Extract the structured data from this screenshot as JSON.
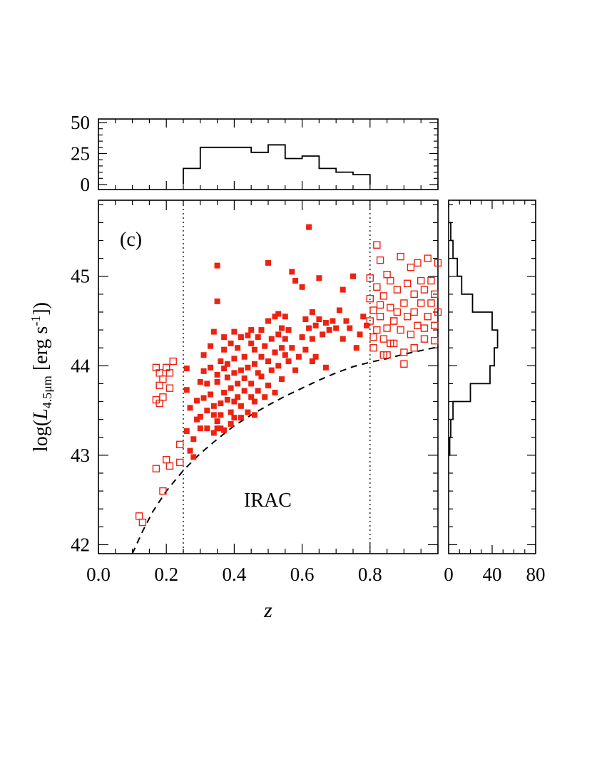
{
  "chart_data": {
    "type": "scatter",
    "panel_label": "(c)",
    "annotation": "IRAC",
    "xlabel": "z",
    "ylabel": {
      "pre": "log(",
      "L": "L",
      "sub": "4.5μm",
      "unit_pre": " [erg s",
      "sup": "-1",
      "unit_post": "])"
    },
    "xlim": [
      0.0,
      1.0
    ],
    "ylim": [
      41.9,
      45.85
    ],
    "x_ticks": [
      "0.0",
      "0.2",
      "0.4",
      "0.6",
      "0.8"
    ],
    "x_tick_values": [
      0.0,
      0.2,
      0.4,
      0.6,
      0.8
    ],
    "y_ticks": [
      "42",
      "43",
      "44",
      "45"
    ],
    "y_tick_values": [
      42,
      43,
      44,
      45
    ],
    "marker_color": "#ee2211",
    "vertical_lines_z": [
      0.25,
      0.8
    ],
    "limit_curve": {
      "style": "dashed",
      "z": [
        0.1,
        0.13,
        0.16,
        0.2,
        0.25,
        0.3,
        0.35,
        0.4,
        0.45,
        0.5,
        0.55,
        0.6,
        0.65,
        0.7,
        0.75,
        0.8,
        0.85,
        0.9,
        0.95,
        1.0
      ],
      "logL": [
        41.9,
        42.15,
        42.37,
        42.6,
        42.83,
        43.02,
        43.18,
        43.33,
        43.45,
        43.56,
        43.66,
        43.75,
        43.84,
        43.92,
        43.99,
        44.04,
        44.08,
        44.13,
        44.17,
        44.21
      ]
    },
    "series": [
      {
        "marker": "filled-square",
        "points": [
          [
            0.26,
            43.97
          ],
          [
            0.26,
            43.73
          ],
          [
            0.27,
            43.53
          ],
          [
            0.26,
            43.27
          ],
          [
            0.27,
            43.05
          ],
          [
            0.28,
            42.98
          ],
          [
            0.28,
            43.18
          ],
          [
            0.29,
            43.4
          ],
          [
            0.29,
            43.61
          ],
          [
            0.3,
            43.82
          ],
          [
            0.3,
            43.43
          ],
          [
            0.31,
            44.12
          ],
          [
            0.31,
            43.94
          ],
          [
            0.31,
            43.64
          ],
          [
            0.32,
            43.5
          ],
          [
            0.32,
            43.3
          ],
          [
            0.32,
            43.8
          ],
          [
            0.33,
            43.98
          ],
          [
            0.33,
            44.22
          ],
          [
            0.33,
            43.68
          ],
          [
            0.34,
            43.45
          ],
          [
            0.34,
            43.25
          ],
          [
            0.34,
            44.38
          ],
          [
            0.34,
            43.55
          ],
          [
            0.35,
            45.12
          ],
          [
            0.35,
            44.72
          ],
          [
            0.35,
            43.9
          ],
          [
            0.35,
            43.38
          ],
          [
            0.35,
            43.82
          ],
          [
            0.36,
            43.3
          ],
          [
            0.36,
            44.05
          ],
          [
            0.36,
            43.58
          ],
          [
            0.36,
            43.45
          ],
          [
            0.37,
            43.97
          ],
          [
            0.37,
            44.18
          ],
          [
            0.37,
            43.7
          ],
          [
            0.37,
            43.28
          ],
          [
            0.37,
            44.32
          ],
          [
            0.38,
            43.87
          ],
          [
            0.38,
            44.02
          ],
          [
            0.38,
            43.62
          ],
          [
            0.39,
            43.48
          ],
          [
            0.39,
            43.75
          ],
          [
            0.39,
            44.25
          ],
          [
            0.39,
            43.35
          ],
          [
            0.4,
            43.92
          ],
          [
            0.4,
            43.6
          ],
          [
            0.4,
            44.08
          ],
          [
            0.4,
            44.38
          ],
          [
            0.41,
            43.8
          ],
          [
            0.41,
            43.65
          ],
          [
            0.41,
            44.2
          ],
          [
            0.42,
            43.55
          ],
          [
            0.42,
            43.95
          ],
          [
            0.42,
            43.42
          ],
          [
            0.42,
            44.32
          ],
          [
            0.43,
            43.72
          ],
          [
            0.43,
            44.1
          ],
          [
            0.43,
            43.86
          ],
          [
            0.44,
            44.34
          ],
          [
            0.44,
            43.48
          ],
          [
            0.44,
            43.98
          ],
          [
            0.45,
            43.65
          ],
          [
            0.45,
            44.25
          ],
          [
            0.45,
            43.8
          ],
          [
            0.45,
            44.4
          ],
          [
            0.46,
            44.02
          ],
          [
            0.46,
            43.6
          ],
          [
            0.46,
            44.18
          ],
          [
            0.47,
            43.92
          ],
          [
            0.47,
            44.32
          ],
          [
            0.47,
            43.72
          ],
          [
            0.48,
            44.4
          ],
          [
            0.48,
            44.1
          ],
          [
            0.48,
            43.88
          ],
          [
            0.49,
            44.22
          ],
          [
            0.49,
            43.65
          ],
          [
            0.5,
            45.15
          ],
          [
            0.5,
            44.05
          ],
          [
            0.5,
            44.5
          ],
          [
            0.5,
            43.78
          ],
          [
            0.51,
            44.3
          ],
          [
            0.51,
            43.95
          ],
          [
            0.52,
            44.15
          ],
          [
            0.52,
            44.55
          ],
          [
            0.52,
            43.7
          ],
          [
            0.53,
            44.0
          ],
          [
            0.53,
            44.35
          ],
          [
            0.53,
            44.58
          ],
          [
            0.54,
            44.2
          ],
          [
            0.54,
            43.85
          ],
          [
            0.54,
            44.42
          ],
          [
            0.55,
            44.12
          ],
          [
            0.55,
            44.55
          ],
          [
            0.55,
            44.3
          ],
          [
            0.56,
            44.05
          ],
          [
            0.56,
            44.4
          ],
          [
            0.57,
            45.05
          ],
          [
            0.57,
            44.2
          ],
          [
            0.58,
            44.95
          ],
          [
            0.58,
            43.95
          ],
          [
            0.59,
            44.1
          ],
          [
            0.6,
            44.32
          ],
          [
            0.6,
            44.88
          ],
          [
            0.61,
            44.52
          ],
          [
            0.61,
            44.18
          ],
          [
            0.62,
            45.55
          ],
          [
            0.62,
            44.42
          ],
          [
            0.63,
            44.6
          ],
          [
            0.63,
            44.3
          ],
          [
            0.64,
            44.45
          ],
          [
            0.64,
            44.1
          ],
          [
            0.65,
            44.98
          ],
          [
            0.65,
            44.52
          ],
          [
            0.66,
            44.35
          ],
          [
            0.67,
            44.48
          ],
          [
            0.68,
            44.4
          ],
          [
            0.69,
            44.5
          ],
          [
            0.7,
            44.42
          ],
          [
            0.71,
            44.62
          ],
          [
            0.72,
            44.3
          ],
          [
            0.72,
            44.85
          ],
          [
            0.73,
            44.5
          ],
          [
            0.74,
            44.42
          ],
          [
            0.75,
            45.0
          ],
          [
            0.76,
            44.2
          ],
          [
            0.77,
            44.35
          ],
          [
            0.78,
            44.55
          ],
          [
            0.79,
            44.45
          ],
          [
            0.46,
            43.45
          ],
          [
            0.4,
            43.42
          ],
          [
            0.35,
            43.3
          ],
          [
            0.3,
            43.3
          ],
          [
            0.63,
            44.05
          ],
          [
            0.67,
            43.98
          ]
        ]
      },
      {
        "marker": "open-square",
        "points": [
          [
            0.12,
            42.32
          ],
          [
            0.13,
            42.25
          ],
          [
            0.17,
            42.85
          ],
          [
            0.17,
            43.62
          ],
          [
            0.17,
            43.98
          ],
          [
            0.18,
            43.78
          ],
          [
            0.18,
            43.58
          ],
          [
            0.18,
            43.92
          ],
          [
            0.19,
            43.65
          ],
          [
            0.19,
            43.85
          ],
          [
            0.19,
            42.6
          ],
          [
            0.2,
            42.95
          ],
          [
            0.2,
            43.98
          ],
          [
            0.21,
            42.88
          ],
          [
            0.21,
            43.92
          ],
          [
            0.21,
            43.75
          ],
          [
            0.22,
            44.05
          ],
          [
            0.24,
            43.12
          ],
          [
            0.24,
            42.92
          ],
          [
            0.8,
            44.75
          ],
          [
            0.8,
            44.5
          ],
          [
            0.8,
            44.98
          ],
          [
            0.81,
            44.2
          ],
          [
            0.81,
            44.62
          ],
          [
            0.82,
            44.88
          ],
          [
            0.82,
            45.35
          ],
          [
            0.82,
            44.4
          ],
          [
            0.83,
            45.18
          ],
          [
            0.83,
            44.55
          ],
          [
            0.84,
            44.3
          ],
          [
            0.84,
            44.78
          ],
          [
            0.85,
            45.02
          ],
          [
            0.85,
            44.42
          ],
          [
            0.85,
            44.12
          ],
          [
            0.86,
            44.65
          ],
          [
            0.86,
            44.95
          ],
          [
            0.87,
            44.5
          ],
          [
            0.87,
            44.25
          ],
          [
            0.88,
            44.85
          ],
          [
            0.88,
            44.6
          ],
          [
            0.89,
            45.22
          ],
          [
            0.89,
            44.4
          ],
          [
            0.9,
            44.7
          ],
          [
            0.9,
            44.15
          ],
          [
            0.91,
            44.92
          ],
          [
            0.91,
            44.55
          ],
          [
            0.92,
            45.1
          ],
          [
            0.92,
            44.35
          ],
          [
            0.93,
            44.8
          ],
          [
            0.93,
            44.6
          ],
          [
            0.94,
            45.15
          ],
          [
            0.94,
            44.45
          ],
          [
            0.95,
            44.7
          ],
          [
            0.95,
            44.95
          ],
          [
            0.96,
            44.3
          ],
          [
            0.96,
            44.85
          ],
          [
            0.97,
            45.2
          ],
          [
            0.97,
            44.55
          ],
          [
            0.98,
            44.7
          ],
          [
            0.98,
            44.95
          ],
          [
            0.99,
            44.45
          ],
          [
            0.99,
            44.8
          ],
          [
            1.0,
            45.15
          ],
          [
            1.0,
            44.6
          ],
          [
            0.84,
            44.12
          ],
          [
            0.81,
            44.32
          ],
          [
            0.86,
            44.25
          ],
          [
            0.9,
            44.02
          ],
          [
            0.93,
            44.2
          ],
          [
            0.96,
            44.42
          ],
          [
            0.99,
            44.28
          ],
          [
            0.87,
            44.5
          ],
          [
            0.83,
            44.68
          ]
        ]
      }
    ],
    "top_histogram": {
      "type": "histogram",
      "ylim": [
        0,
        50
      ],
      "y_ticks": [
        "50",
        "25",
        "0"
      ],
      "y_tick_values": [
        50,
        25,
        0
      ],
      "bin_edges": [
        0.25,
        0.3,
        0.35,
        0.4,
        0.45,
        0.5,
        0.55,
        0.6,
        0.65,
        0.7,
        0.75,
        0.8
      ],
      "counts": [
        13,
        30,
        30,
        30,
        26,
        32,
        21,
        23,
        13,
        10,
        8
      ]
    },
    "right_histogram": {
      "type": "histogram",
      "xlim": [
        0,
        80
      ],
      "x_ticks": [
        "0",
        "40",
        "80"
      ],
      "x_tick_values": [
        0,
        40,
        80
      ],
      "bin_edges": [
        43.0,
        43.2,
        43.4,
        43.6,
        43.8,
        44.0,
        44.2,
        44.4,
        44.6,
        44.8,
        45.0,
        45.2,
        45.4,
        45.6
      ],
      "counts": [
        1,
        2,
        4,
        20,
        38,
        42,
        45,
        40,
        22,
        12,
        8,
        4,
        2
      ]
    }
  }
}
